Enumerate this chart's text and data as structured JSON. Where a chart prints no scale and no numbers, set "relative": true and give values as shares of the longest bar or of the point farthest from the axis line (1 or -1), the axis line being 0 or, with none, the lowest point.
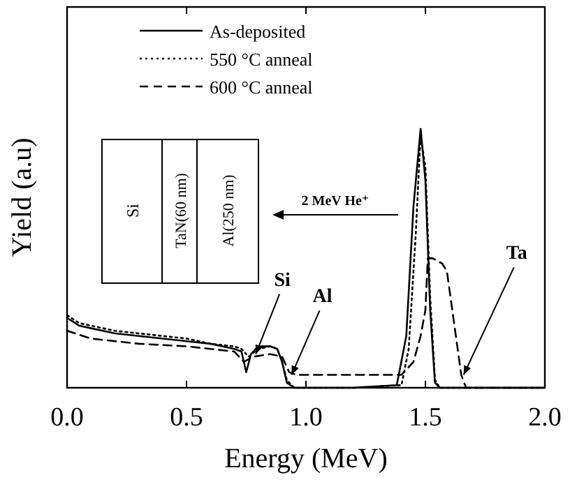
{
  "chart_data": {
    "type": "line",
    "xlabel": "Energy (MeV)",
    "ylabel": "Yield (a.u)",
    "relative": true,
    "xlim": [
      0,
      2
    ],
    "xticks": [
      {
        "value": 0,
        "label": "0.0"
      },
      {
        "value": 0.5,
        "label": "0.5"
      },
      {
        "value": 1,
        "label": "1.0"
      },
      {
        "value": 1.5,
        "label": "1.5"
      },
      {
        "value": 2,
        "label": "2.0"
      }
    ],
    "grid": false,
    "legend": "top left",
    "series": [
      {
        "name": "As-deposited",
        "color": "#000000",
        "line_style": "solid",
        "x": [
          0,
          0.05,
          0.1,
          0.2,
          0.3,
          0.4,
          0.5,
          0.6,
          0.7,
          0.73,
          0.75,
          0.77,
          0.8,
          0.85,
          0.88,
          0.9,
          0.92,
          0.95,
          1.2,
          1.38,
          1.42,
          1.45,
          1.48,
          1.5,
          1.52,
          1.54,
          1.56,
          2
        ],
        "values": [
          0.27,
          0.24,
          0.23,
          0.21,
          0.2,
          0.19,
          0.18,
          0.17,
          0.15,
          0.14,
          0.06,
          0.13,
          0.16,
          0.16,
          0.15,
          0.1,
          0.02,
          0,
          0,
          0.01,
          0.2,
          0.7,
          1,
          0.8,
          0.3,
          0.02,
          0,
          0
        ]
      },
      {
        "name": "550 °C anneal",
        "color": "#000000",
        "line_style": "dotted",
        "x": [
          0,
          0.05,
          0.1,
          0.2,
          0.3,
          0.4,
          0.5,
          0.6,
          0.7,
          0.73,
          0.76,
          0.8,
          0.85,
          0.88,
          0.9,
          0.92,
          0.95,
          1.2,
          1.4,
          1.43,
          1.46,
          1.48,
          1.5,
          1.52,
          1.54,
          1.56,
          2
        ],
        "values": [
          0.28,
          0.25,
          0.24,
          0.22,
          0.21,
          0.2,
          0.19,
          0.17,
          0.16,
          0.15,
          0.12,
          0.15,
          0.16,
          0.15,
          0.1,
          0.03,
          0,
          0,
          0.01,
          0.15,
          0.6,
          0.98,
          0.85,
          0.35,
          0.03,
          0,
          0
        ]
      },
      {
        "name": "600 °C anneal",
        "color": "#000000",
        "line_style": "dashed",
        "x": [
          0,
          0.1,
          0.3,
          0.5,
          0.7,
          0.74,
          0.78,
          0.85,
          0.9,
          0.93,
          0.96,
          1.2,
          1.4,
          1.45,
          1.48,
          1.5,
          1.51,
          1.53,
          1.57,
          1.59,
          1.62,
          1.65,
          1.67,
          2
        ],
        "values": [
          0.22,
          0.19,
          0.17,
          0.16,
          0.14,
          0.1,
          0.12,
          0.13,
          0.12,
          0.06,
          0.05,
          0.05,
          0.05,
          0.1,
          0.2,
          0.3,
          0.5,
          0.5,
          0.48,
          0.45,
          0.25,
          0.05,
          0,
          0
        ]
      }
    ],
    "annotations": [
      {
        "text": "Si",
        "x": 0.79,
        "y": 0.13
      },
      {
        "text": "Al",
        "x": 0.94,
        "y": 0.05
      },
      {
        "text": "Ta",
        "x": 1.66,
        "y": 0.05
      },
      "2 MeV He⁺",
      "Si",
      "TaN(60 nm)",
      "Al(250 nm)"
    ]
  }
}
